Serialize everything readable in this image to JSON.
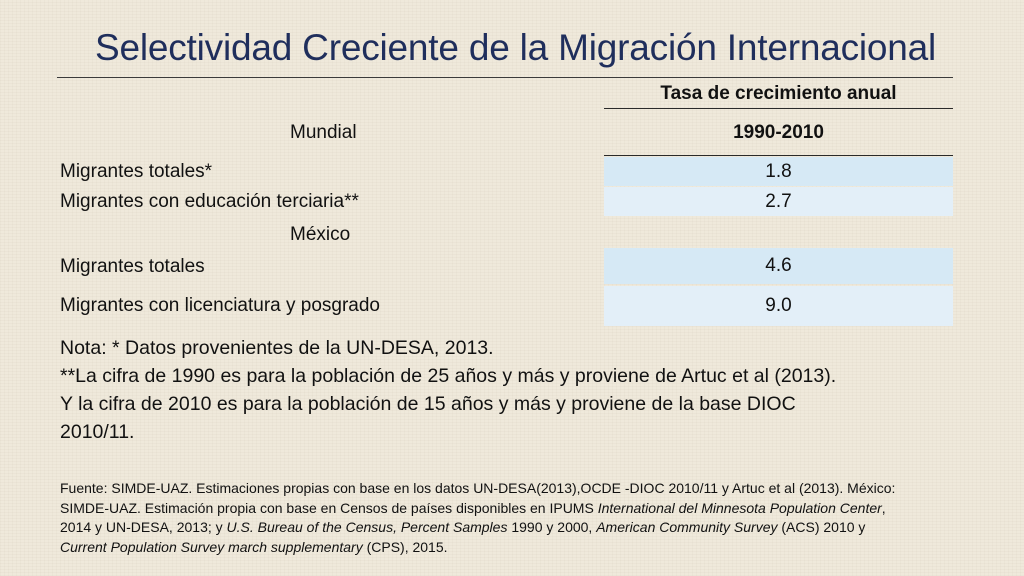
{
  "slide": {
    "title": "Selectividad Creciente de la Migración Internacional"
  },
  "table": {
    "header_top": "Tasa de crecimiento anual",
    "header_period": "1990-2010",
    "section_world": "Mundial",
    "section_mexico": "México",
    "rows": [
      {
        "label": "Migrantes totales*",
        "value": "1.8"
      },
      {
        "label": "Migrantes con educación terciaria**",
        "value": "2.7"
      },
      {
        "label": "Migrantes totales",
        "value": "4.6"
      },
      {
        "label": "Migrantes con licenciatura y posgrado",
        "value": "9.0"
      }
    ]
  },
  "notes": {
    "line1": "Nota: * Datos provenientes de la UN-DESA, 2013.",
    "line2": "**La cifra de 1990 es para la población de 25 años y más y proviene de Artuc et al (2013).",
    "line3": "Y la cifra de 2010 es para la población de 15 años y más y proviene de la base DIOC",
    "line4": "2010/11."
  },
  "source": {
    "l1": "Fuente: SIMDE-UAZ. Estimaciones propias con base en los datos UN-DESA(2013),OCDE -DIOC 2010/11 y Artuc et al (2013). México:",
    "l2a": "SIMDE-UAZ. Estimación propia con base en Censos de países disponibles en IPUMS ",
    "l2b": "International del Minnesota Population Center",
    "l2c": ",",
    "l3a": "2014 y UN-DESA, 2013; y ",
    "l3b": "U.S. Bureau of the Census, Percent Samples",
    "l3c": " 1990 y 2000, ",
    "l3d": "American Community Survey",
    "l3e": " (ACS) 2010 y",
    "l4a": "Current Population Survey march supplementary",
    "l4b": " (CPS), 2015."
  }
}
